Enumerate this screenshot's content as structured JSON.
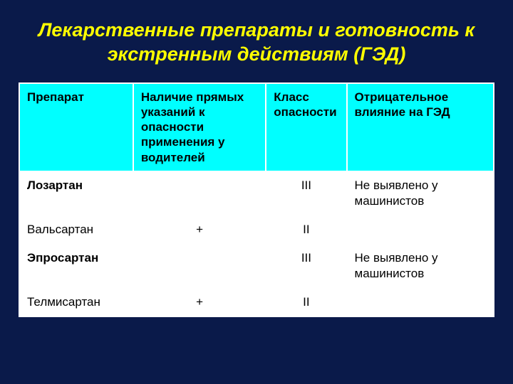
{
  "title": "Лекарственные препараты и готовность к экстренным действиям (ГЭД)",
  "table": {
    "background": "#ffffff",
    "header_bg": "#00ffff",
    "header_font_weight": "bold",
    "cell_font_size": 17,
    "columns": [
      {
        "label": "Препарат",
        "width_pct": 24,
        "align": "left"
      },
      {
        "label": "Наличие прямых указаний к опасности применения у водителей",
        "width_pct": 28,
        "align": "center"
      },
      {
        "label": "Класс опасности",
        "width_pct": 17,
        "align": "center"
      },
      {
        "label": "Отрицательное влияние на ГЭД",
        "width_pct": 31,
        "align": "left"
      }
    ],
    "rows": [
      {
        "drug": "Лозартан",
        "direct": "",
        "class": "III",
        "negative": "Не выявлено у машинистов",
        "bold_drug": true
      },
      {
        "drug": "Вальсартан",
        "direct": "+",
        "class": "II",
        "negative": "",
        "bold_drug": false
      },
      {
        "drug": "Эпросартан",
        "direct": "",
        "class": "III",
        "negative": "Не выявлено у машинистов",
        "bold_drug": true
      },
      {
        "drug": "Телмисартан",
        "direct": "+",
        "class": "II",
        "negative": "",
        "bold_drug": false
      }
    ]
  },
  "colors": {
    "slide_bg": "#0a1a4a",
    "title_color": "#ffff00",
    "header_bg": "#00ffff",
    "cell_bg": "#ffffff",
    "text": "#000000"
  },
  "typography": {
    "title_fontsize": 27,
    "title_weight": "bold",
    "title_style": "italic",
    "cell_fontsize": 17,
    "font_family": "Arial"
  }
}
